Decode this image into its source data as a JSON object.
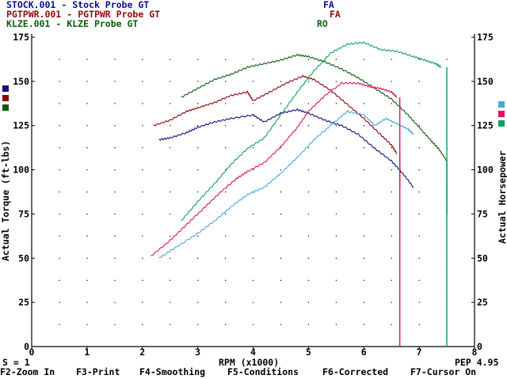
{
  "header_rows": [
    {
      "file": "STOCK.001",
      "sep": "-",
      "desc": "Stock Probe GT",
      "code": "FA",
      "color": "#0c0c8c"
    },
    {
      "file": "PGTPWR.001",
      "sep": "-",
      "desc": "PGTPWR Probe GT",
      "code": "FA",
      "color": "#8c0c0c"
    },
    {
      "file": "KLZE.001",
      "sep": "-",
      "desc": "KLZE Probe GT",
      "code": "RO",
      "color": "#0c5c0c"
    }
  ],
  "colors": {
    "stock_torque": "#10107c",
    "pgtpwr_torque": "#8c0808",
    "klze_torque": "#0c5c0c",
    "stock_hp": "#4aa8d8",
    "pgtpwr_hp": "#e0105c",
    "klze_hp": "#10a05c",
    "grid": "#000000",
    "background": "#ffffff"
  },
  "status_left": "S = 1",
  "status_right": "PEP 4.95",
  "function_keys": [
    "F2-Zoom In",
    "F3-Print",
    "F4-Smoothing",
    "F5-Conditions",
    "F6-Corrected",
    "F7-Cursor On"
  ],
  "chart_data": {
    "type": "line",
    "xlabel": "RPM (x1000)",
    "ylabel_left": "Actual Torque (ft-lbs)",
    "ylabel_right": "Actual Horsepower",
    "xlim": [
      0,
      8
    ],
    "ylim": [
      0,
      175
    ],
    "x_ticks": [
      "0",
      "1",
      "2",
      "3",
      "4",
      "5",
      "6",
      "7",
      "8"
    ],
    "y_ticks": [
      "0",
      "25",
      "50",
      "75",
      "100",
      "125",
      "150",
      "175"
    ],
    "grid": "dotted",
    "series": [
      {
        "name": "STOCK.001",
        "kind": "torque",
        "color_key": "stock_torque",
        "x": [
          2.3,
          2.5,
          2.8,
          3.0,
          3.3,
          3.6,
          4.0,
          4.2,
          4.5,
          4.8,
          5.0,
          5.3,
          5.6,
          5.9,
          6.2,
          6.5,
          6.7,
          6.9
        ],
        "y": [
          117,
          118,
          121,
          124,
          127,
          129,
          131,
          127,
          132,
          134,
          132,
          128,
          125,
          120,
          112,
          105,
          98,
          90
        ]
      },
      {
        "name": "PGTPWR.001",
        "kind": "torque",
        "color_key": "pgtpwr_torque",
        "x": [
          2.2,
          2.5,
          2.8,
          3.0,
          3.3,
          3.6,
          3.9,
          4.0,
          4.3,
          4.6,
          4.9,
          5.1,
          5.4,
          5.7,
          6.0,
          6.3,
          6.5,
          6.6
        ],
        "y": [
          125,
          128,
          133,
          135,
          138,
          142,
          144,
          139,
          144,
          149,
          153,
          151,
          145,
          137,
          129,
          120,
          114,
          109
        ]
      },
      {
        "name": "KLZE.001",
        "kind": "torque",
        "color_key": "klze_torque",
        "x": [
          2.7,
          3.0,
          3.3,
          3.6,
          3.9,
          4.2,
          4.5,
          4.8,
          5.0,
          5.3,
          5.6,
          5.9,
          6.2,
          6.5,
          6.8,
          7.0,
          7.2,
          7.35,
          7.5
        ],
        "y": [
          141,
          146,
          151,
          154,
          158,
          160,
          162,
          165,
          164,
          161,
          157,
          152,
          146,
          140,
          131,
          124,
          117,
          112,
          105
        ]
      },
      {
        "name": "STOCK.001",
        "kind": "horsepower",
        "color_key": "stock_hp",
        "x": [
          2.3,
          2.6,
          3.0,
          3.3,
          3.6,
          3.9,
          4.2,
          4.5,
          4.8,
          5.1,
          5.4,
          5.7,
          6.0,
          6.2,
          6.4,
          6.6,
          6.8,
          6.9
        ],
        "y": [
          50,
          56,
          64,
          71,
          79,
          86,
          90,
          98,
          107,
          117,
          125,
          133,
          131,
          125,
          129,
          126,
          123,
          120
        ]
      },
      {
        "name": "PGTPWR.001",
        "kind": "horsepower",
        "color_key": "pgtpwr_hp",
        "x": [
          2.15,
          2.5,
          2.8,
          3.1,
          3.4,
          3.7,
          3.9,
          4.2,
          4.5,
          4.8,
          5.0,
          5.3,
          5.6,
          5.9,
          6.1,
          6.3,
          6.5,
          6.6
        ],
        "y": [
          51,
          60,
          69,
          78,
          87,
          95,
          99,
          104,
          113,
          124,
          133,
          142,
          149,
          149,
          147,
          146,
          144,
          141
        ]
      },
      {
        "name": "KLZE.001",
        "kind": "horsepower",
        "color_key": "klze_hp",
        "x": [
          2.7,
          3.0,
          3.3,
          3.6,
          3.9,
          4.2,
          4.5,
          4.8,
          5.1,
          5.4,
          5.7,
          6.0,
          6.3,
          6.6,
          6.9,
          7.1,
          7.3,
          7.4
        ],
        "y": [
          71,
          82,
          92,
          103,
          112,
          118,
          131,
          144,
          156,
          166,
          171,
          172,
          168,
          167,
          164,
          162,
          160,
          158
        ]
      }
    ]
  }
}
